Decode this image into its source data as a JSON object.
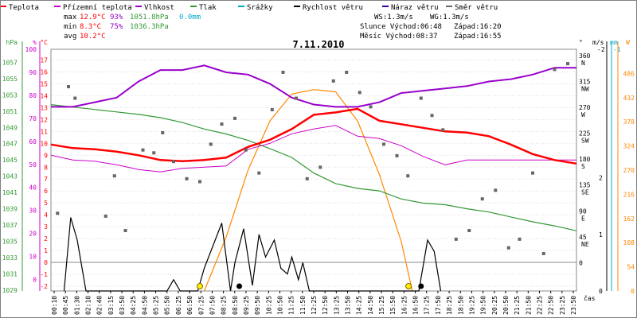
{
  "chart_data": {
    "type": "line",
    "title": "7.11.2010",
    "legend": [
      {
        "label": "Teplota",
        "color": "#ff0000"
      },
      {
        "label": "Přízemní teplota",
        "color": "#cc00cc"
      },
      {
        "label": "Vlhkost",
        "color": "#9900cc"
      },
      {
        "label": "Tlak",
        "color": "#339933"
      },
      {
        "label": "Srážky",
        "color": "#00aacc"
      },
      {
        "label": "Rychlost větru",
        "color": "#000000"
      },
      {
        "label": "Náraz větru",
        "color": "#330099"
      },
      {
        "label": "Směr větru",
        "color": "#666666"
      }
    ],
    "stats": {
      "max": {
        "label": "max",
        "temp": "12.9°C",
        "hum": "93%",
        "press": "1051.8hPa",
        "rain": "0.0mm"
      },
      "min": {
        "label": "min",
        "temp": "8.3°C",
        "hum": "75%",
        "press": "1036.3hPa"
      },
      "avg": {
        "label": "avg",
        "temp": "10.2°C"
      }
    },
    "info": {
      "ws": "WS:1.3m/s",
      "wg": "WG:1.3m/s",
      "sun": "Slunce Východ:06:48",
      "sun_set": "Západ:16:20",
      "moon": "Měsíc Východ:08:37",
      "moon_set": "Západ:16:55"
    },
    "axes": {
      "hpa": {
        "unit": "hPa",
        "ticks": [
          "1057",
          "1055",
          "1053",
          "1051",
          "1049",
          "1047",
          "1045",
          "1043",
          "1041",
          "1039",
          "1037",
          "1035",
          "1033",
          "1031",
          "1029"
        ],
        "range": [
          1029,
          1058
        ]
      },
      "pct": {
        "unit": "%",
        "ticks": [
          "100",
          "90",
          "80",
          "70",
          "60",
          "50",
          "40",
          "30",
          "20",
          "10",
          "0"
        ],
        "range": [
          -5,
          100
        ]
      },
      "celsius": {
        "unit": "°C",
        "ticks": [
          "17",
          "16",
          "15",
          "14",
          "13",
          "12",
          "11",
          "10",
          "9",
          "8",
          "7",
          "6",
          "5",
          "4",
          "3",
          "2",
          "1",
          "0",
          "-1",
          "-2"
        ],
        "range": [
          -2,
          17
        ]
      },
      "wind_dir": {
        "unit": "°",
        "ticks": [
          "360",
          "315",
          "270",
          "225",
          "180",
          "135",
          "90",
          "45",
          "0"
        ],
        "labels": [
          "N",
          "NW",
          "W",
          "SW",
          "S",
          "SE",
          "E",
          "NE",
          ""
        ]
      },
      "ms": {
        "unit": "m/s",
        "ticks": [
          "2",
          "1",
          "0"
        ],
        "top": "-2",
        "top2": "-1"
      },
      "mm": {
        "unit": "mm"
      },
      "wm2": {
        "unit": "W",
        "ticks": [
          "486",
          "432",
          "378",
          "324",
          "270",
          "216",
          "162",
          "108",
          "54",
          "0"
        ],
        "range": [
          0,
          540
        ]
      },
      "time": {
        "unit": "čas",
        "ticks": [
          "00:10",
          "00:45",
          "01:30",
          "02:10",
          "02:40",
          "03:15",
          "03:50",
          "04:25",
          "04:50",
          "05:25",
          "05:50",
          "06:25",
          "06:50",
          "07:25",
          "07:50",
          "08:25",
          "08:50",
          "09:25",
          "09:50",
          "10:25",
          "10:50",
          "11:25",
          "11:50",
          "12:25",
          "12:50",
          "13:25",
          "13:50",
          "14:25",
          "14:50",
          "15:25",
          "15:50",
          "16:25",
          "16:50",
          "17:25",
          "17:50",
          "18:25",
          "18:50",
          "19:25",
          "19:50",
          "20:25",
          "20:50",
          "21:25",
          "21:50",
          "22:25",
          "22:50",
          "23:25",
          "23:50"
        ]
      }
    },
    "series": [
      {
        "name": "Teplota",
        "unit": "°C",
        "color": "#ff0000",
        "x": [
          0,
          1,
          2,
          3,
          4,
          5,
          6,
          7,
          8,
          9,
          10,
          11,
          12,
          13,
          14,
          15,
          16,
          17,
          18,
          19,
          20,
          21,
          22,
          23,
          24
        ],
        "y": [
          9.9,
          9.6,
          9.5,
          9.3,
          9.0,
          8.6,
          8.5,
          8.6,
          8.8,
          9.7,
          10.3,
          11.2,
          12.4,
          12.6,
          12.9,
          11.9,
          11.6,
          11.3,
          11.0,
          10.9,
          10.6,
          9.9,
          9.1,
          8.6,
          8.3
        ]
      },
      {
        "name": "Přízemní teplota",
        "unit": "°C",
        "color": "#cc00cc",
        "x": [
          0,
          1,
          2,
          3,
          4,
          5,
          6,
          7,
          8,
          9,
          10,
          11,
          12,
          13,
          14,
          15,
          16,
          17,
          18,
          19,
          20,
          21,
          22,
          23,
          24
        ],
        "y": [
          9.0,
          8.6,
          8.5,
          8.2,
          7.8,
          7.6,
          7.9,
          8.0,
          8.1,
          9.5,
          10.0,
          10.8,
          11.2,
          11.5,
          10.6,
          10.4,
          9.8,
          8.9,
          8.2,
          8.6,
          8.6,
          8.6,
          8.6,
          8.6,
          8.6
        ]
      },
      {
        "name": "Vlhkost",
        "unit": "%",
        "color": "#9900cc",
        "x": [
          0,
          1,
          2,
          3,
          4,
          5,
          6,
          7,
          8,
          9,
          10,
          11,
          12,
          13,
          14,
          15,
          16,
          17,
          18,
          19,
          20,
          21,
          22,
          23,
          24
        ],
        "y": [
          75,
          75,
          77,
          79,
          86,
          91,
          91,
          93,
          90,
          89,
          85,
          79,
          76,
          75,
          75,
          77,
          81,
          82,
          83,
          84,
          86,
          87,
          89,
          92,
          92
        ]
      },
      {
        "name": "Tlak",
        "unit": "hPa",
        "color": "#339933",
        "x": [
          0,
          1,
          2,
          3,
          4,
          5,
          6,
          7,
          8,
          9,
          10,
          11,
          12,
          13,
          14,
          15,
          16,
          17,
          18,
          19,
          20,
          21,
          22,
          23,
          24
        ],
        "y": [
          1051.8,
          1051.5,
          1051.2,
          1050.9,
          1050.6,
          1050.2,
          1049.6,
          1048.8,
          1048.2,
          1047.4,
          1046.4,
          1045.3,
          1043.4,
          1042.1,
          1041.5,
          1041.2,
          1040.2,
          1039.7,
          1039.5,
          1039.0,
          1038.6,
          1038.0,
          1037.4,
          1036.9,
          1036.3
        ]
      },
      {
        "name": "Rychlost větru",
        "unit": "m/s",
        "color": "#000000",
        "x": [
          0.6,
          0.9,
          1.2,
          1.6,
          5.3,
          5.6,
          5.9,
          6.7,
          7.0,
          7.8,
          8.2,
          8.4,
          8.8,
          9.2,
          9.5,
          9.8,
          10.2,
          10.5,
          10.8,
          11.0,
          11.3,
          11.5,
          11.8,
          12.0,
          16.8,
          17.2,
          17.5,
          17.8
        ],
        "y": [
          0,
          1.3,
          0.9,
          0,
          0,
          0.2,
          0,
          0,
          0.4,
          1.2,
          0,
          0.5,
          1.1,
          0.1,
          1.0,
          0.6,
          0.9,
          0.4,
          0.3,
          0.6,
          0.2,
          0.5,
          0,
          0,
          0,
          0.9,
          0.7,
          0
        ]
      },
      {
        "name": "Solar",
        "unit": "W",
        "color": "#ff8800",
        "x": [
          7.0,
          8.0,
          9.0,
          10.0,
          11.0,
          12.0,
          13.0,
          14.0,
          15.0,
          16.0,
          16.5
        ],
        "y": [
          0,
          120,
          270,
          380,
          440,
          450,
          445,
          380,
          260,
          110,
          0
        ]
      }
    ],
    "wind_dir_points": {
      "x": [
        0.3,
        0.8,
        1.1,
        2.5,
        2.9,
        3.4,
        4.2,
        4.7,
        5.1,
        5.6,
        6.2,
        6.8,
        7.3,
        7.8,
        8.4,
        8.9,
        9.5,
        10.1,
        10.6,
        11.2,
        11.7,
        12.3,
        12.9,
        13.5,
        14.1,
        14.6,
        15.2,
        15.8,
        16.3,
        16.9,
        17.4,
        17.9,
        18.5,
        19.1,
        19.7,
        20.3,
        20.9,
        21.4,
        22.0,
        22.5,
        23.0,
        23.6
      ],
      "y": [
        90,
        310,
        290,
        85,
        155,
        60,
        200,
        195,
        230,
        180,
        150,
        145,
        210,
        245,
        255,
        200,
        160,
        270,
        335,
        290,
        150,
        170,
        320,
        335,
        300,
        275,
        210,
        190,
        155,
        290,
        260,
        235,
        45,
        60,
        115,
        130,
        30,
        45,
        160,
        20,
        340,
        350
      ]
    },
    "events": {
      "sunrise": 6.8,
      "moonrise": 8.6,
      "sunset": 16.33,
      "moonset": 16.9
    }
  }
}
